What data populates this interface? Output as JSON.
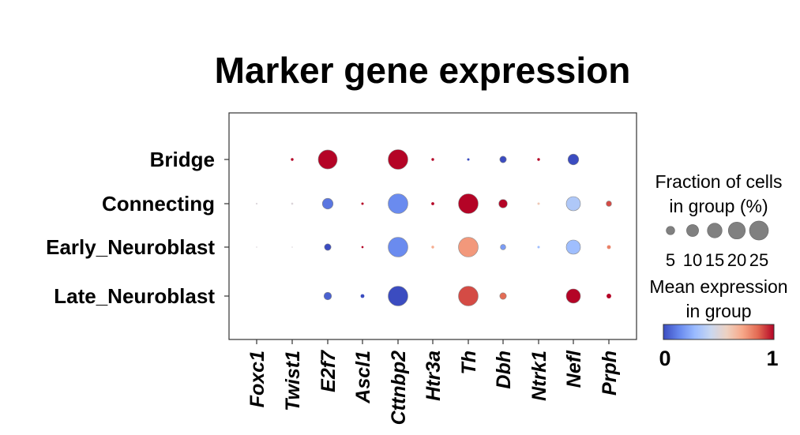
{
  "chart_data": {
    "type": "dotplot",
    "title": "Marker gene expression",
    "genes": [
      "Foxc1",
      "Twist1",
      "E2f7",
      "Ascl1",
      "Cttnbp2",
      "Htr3a",
      "Th",
      "Dbh",
      "Ntrk1",
      "Nefl",
      "Prph"
    ],
    "groups": [
      "Bridge",
      "Connecting",
      "Early_Neuroblast",
      "Late_Neuroblast"
    ],
    "fraction": [
      [
        0,
        0.5,
        25,
        0,
        27,
        0.5,
        0.4,
        3,
        0.5,
        8,
        0
      ],
      [
        0.2,
        0.3,
        8,
        0.4,
        27,
        0.6,
        27,
        5,
        0.4,
        14,
        2
      ],
      [
        0.1,
        0.1,
        3,
        0.3,
        27,
        0.5,
        27,
        2,
        0.4,
        14,
        1
      ],
      [
        0,
        0,
        4,
        1,
        27,
        0,
        27,
        3,
        0,
        14,
        1.5
      ]
    ],
    "mean_expression": [
      [
        0,
        1,
        1,
        0,
        1,
        1,
        0,
        0,
        1,
        0,
        0
      ],
      [
        0.5,
        0.5,
        0.1,
        1,
        0.15,
        1,
        1,
        1,
        0.6,
        0.35,
        0.9
      ],
      [
        0.5,
        0.5,
        0,
        1,
        0.15,
        0.7,
        0.75,
        0.2,
        0.3,
        0.3,
        0.8
      ],
      [
        0,
        0,
        0.05,
        0,
        0,
        0,
        0.9,
        0.85,
        0,
        1,
        1
      ]
    ],
    "size_legend": {
      "title": "Fraction of cells\nin group (%)",
      "values": [
        5,
        10,
        15,
        20,
        25
      ],
      "labels": [
        "5",
        "10",
        "15",
        "20",
        "25"
      ]
    },
    "color_legend": {
      "title": "Mean expression\nin group",
      "min_label": "0",
      "max_label": "1",
      "colormap": [
        "#3b4cc0",
        "#6788ee",
        "#9abbff",
        "#c9d7f0",
        "#edd1c2",
        "#f7a889",
        "#e26952",
        "#b40426"
      ]
    }
  }
}
